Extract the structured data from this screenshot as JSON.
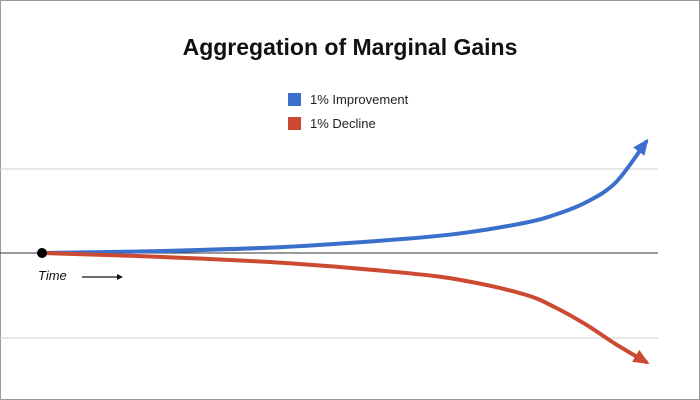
{
  "chart_data": {
    "type": "line",
    "title": "Aggregation of Marginal Gains",
    "xlabel": "Time",
    "ylabel": "",
    "xlim": [
      0,
      1
    ],
    "ylim": [
      -1.2,
      1.2
    ],
    "grid": true,
    "legend_position": "top-center",
    "x": [
      0,
      0.2,
      0.4,
      0.6,
      0.7,
      0.8,
      0.85,
      0.9,
      0.95,
      1.0
    ],
    "series": [
      {
        "name": "1% Improvement",
        "color": "#3b6fcc",
        "values": [
          0,
          0.02,
          0.06,
          0.14,
          0.2,
          0.3,
          0.38,
          0.5,
          0.7,
          1.1
        ]
      },
      {
        "name": "1% Decline",
        "color": "#cc4a31",
        "values": [
          0,
          -0.04,
          -0.1,
          -0.2,
          -0.28,
          -0.42,
          -0.55,
          -0.72,
          -0.92,
          -1.1
        ]
      }
    ]
  }
}
